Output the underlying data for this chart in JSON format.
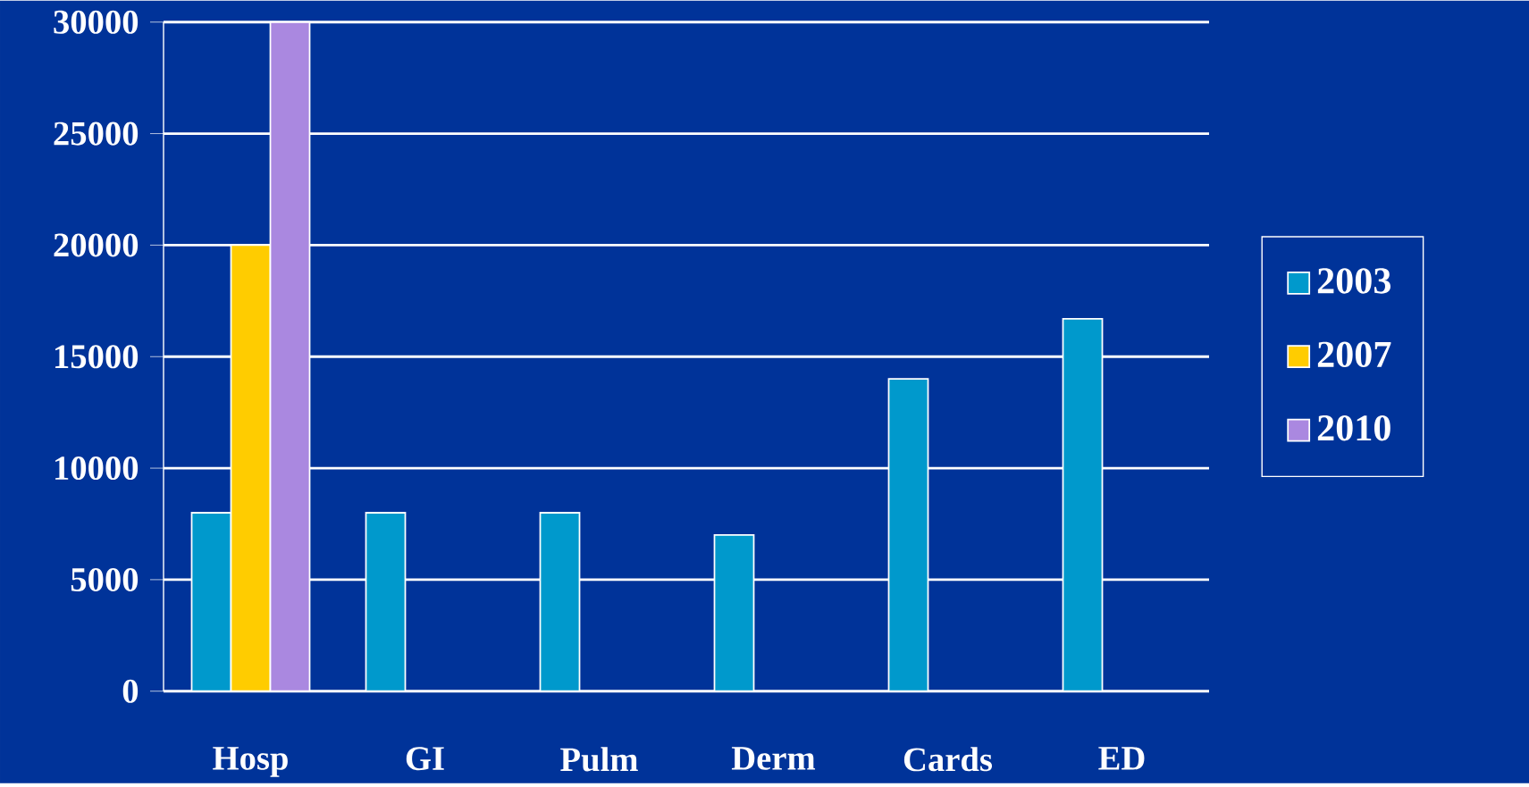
{
  "chart_data": {
    "type": "bar",
    "categories": [
      "Hosp",
      "GI",
      "Pulm",
      "Derm",
      "Cards",
      "ED"
    ],
    "series": [
      {
        "name": "2003",
        "color": "#0099cc",
        "values": [
          8000,
          8000,
          8000,
          7000,
          14000,
          16700
        ]
      },
      {
        "name": "2007",
        "color": "#ffcc00",
        "values": [
          20000,
          null,
          null,
          null,
          null,
          null
        ]
      },
      {
        "name": "2010",
        "color": "#aa88e0",
        "values": [
          30000,
          null,
          null,
          null,
          null,
          null
        ]
      }
    ],
    "ylim": [
      0,
      30000
    ],
    "yticks": [
      0,
      5000,
      10000,
      15000,
      20000,
      25000,
      30000
    ],
    "grid": "y",
    "legend": "right"
  }
}
